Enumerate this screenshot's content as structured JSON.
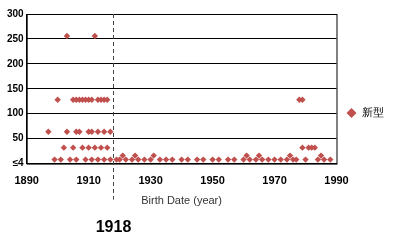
{
  "chart_data": {
    "type": "scatter",
    "x_label": "Birth Date (year)",
    "x": [
      1897,
      1900,
      1903,
      1912,
      1905,
      1906,
      1907,
      1908,
      1909,
      1910,
      1911,
      1913,
      1914,
      1915,
      1916,
      1903,
      1906,
      1907,
      1910,
      1911,
      1913,
      1915,
      1917,
      1902,
      1905,
      1908,
      1910,
      1912,
      1914,
      1916,
      1978,
      1979,
      1979,
      1981,
      1982,
      1983,
      1899,
      1901,
      1904,
      1906,
      1909,
      1911,
      1913,
      1915,
      1917,
      1919,
      1920,
      1922,
      1924,
      1926,
      1928,
      1930,
      1933,
      1935,
      1937,
      1940,
      1942,
      1945,
      1947,
      1950,
      1952,
      1955,
      1957,
      1960,
      1962,
      1964,
      1966,
      1968,
      1970,
      1972,
      1974,
      1976,
      1977,
      1980,
      1984,
      1986,
      1988,
      1921,
      1925,
      1931,
      1961,
      1965,
      1975,
      1985
    ],
    "series": [
      {
        "name": "新型",
        "color": "#c0504d",
        "marker": "diamond",
        "values": [
          64,
          128,
          256,
          256,
          128,
          128,
          128,
          128,
          128,
          128,
          128,
          128,
          128,
          128,
          128,
          64,
          64,
          64,
          64,
          64,
          64,
          64,
          64,
          32,
          32,
          32,
          32,
          32,
          32,
          32,
          128,
          128,
          32,
          32,
          32,
          32,
          8,
          8,
          8,
          8,
          8,
          8,
          8,
          8,
          8,
          8,
          8,
          8,
          8,
          8,
          8,
          8,
          8,
          8,
          8,
          8,
          8,
          8,
          8,
          8,
          8,
          8,
          8,
          8,
          8,
          8,
          8,
          8,
          8,
          8,
          8,
          8,
          8,
          8,
          8,
          8,
          8,
          16,
          16,
          16,
          16,
          16,
          16,
          16
        ]
      }
    ],
    "xlim": [
      1890,
      1990
    ],
    "xticks": [
      1890,
      1910,
      1930,
      1950,
      1970,
      1990
    ],
    "ylim": [
      0,
      300
    ],
    "yticks": [
      {
        "value": 0,
        "label": "≤4"
      },
      50,
      100,
      150,
      200,
      250,
      300
    ],
    "annotations": [
      {
        "x": 1918,
        "label": "1918"
      }
    ],
    "grid": true,
    "legend": "right"
  }
}
